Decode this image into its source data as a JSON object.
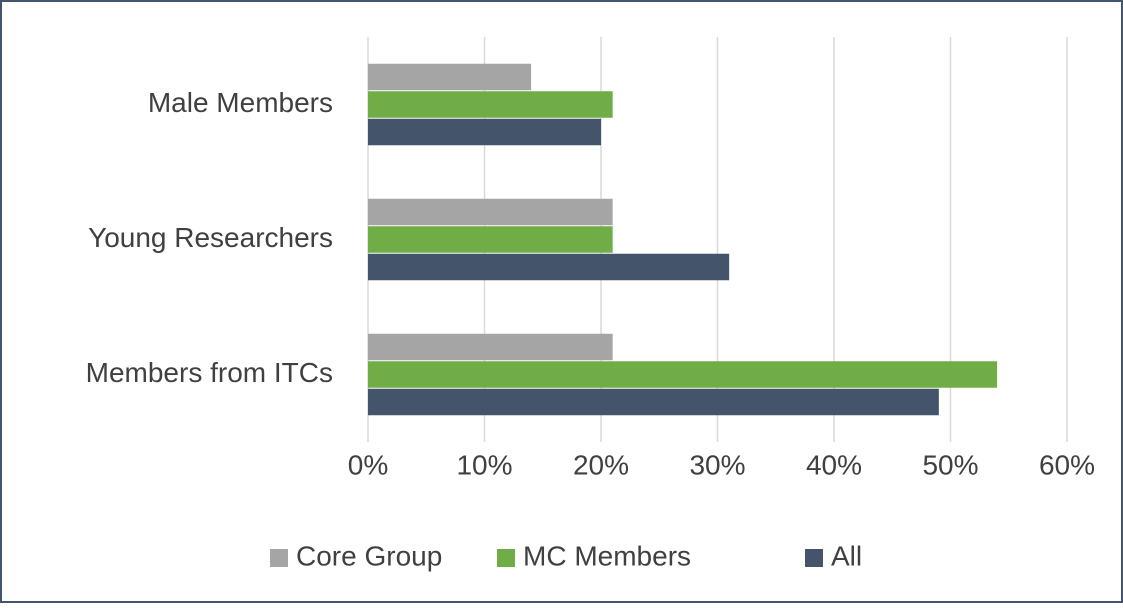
{
  "chart_data": {
    "type": "bar",
    "orientation": "horizontal",
    "categories": [
      "Male Members",
      "Young Researchers",
      "Members from ITCs"
    ],
    "series": [
      {
        "name": "Core Group",
        "color": "#a5a5a5",
        "values": [
          14,
          21,
          21
        ]
      },
      {
        "name": "MC Members",
        "color": "#70ad47",
        "values": [
          21,
          21,
          54
        ]
      },
      {
        "name": "All",
        "color": "#44546a",
        "values": [
          20,
          31,
          49
        ]
      }
    ],
    "xlim": [
      0,
      60
    ],
    "xticks": [
      {
        "value": 0,
        "label": "0%"
      },
      {
        "value": 10,
        "label": "10%"
      },
      {
        "value": 20,
        "label": "20%"
      },
      {
        "value": 30,
        "label": "30%"
      },
      {
        "value": 40,
        "label": "40%"
      },
      {
        "value": 50,
        "label": "50%"
      },
      {
        "value": 60,
        "label": "60%"
      }
    ],
    "grid": true,
    "legend": "bottom"
  }
}
